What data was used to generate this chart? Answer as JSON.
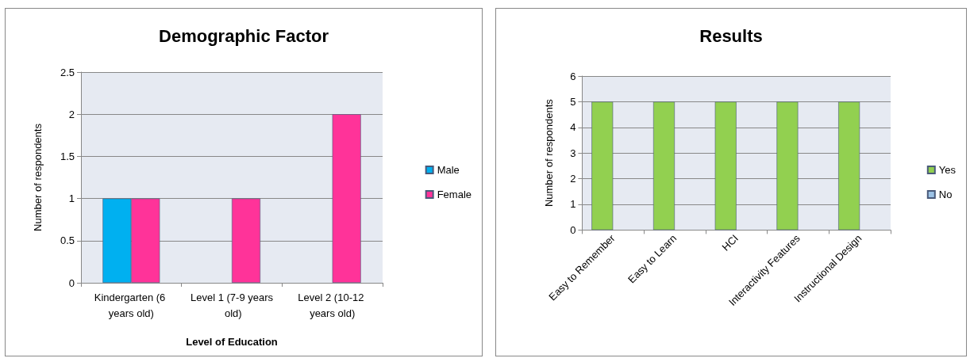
{
  "chart_data": [
    {
      "type": "bar",
      "title": "Demographic Factor",
      "xlabel": "Level of Education",
      "ylabel": "Number of respondents",
      "categories": [
        "Kindergarten (6 years old)",
        "Level 1 (7-9 years old)",
        "Level 2 (10-12 years old)"
      ],
      "series": [
        {
          "name": "Male",
          "color": "#00b0f0",
          "values": [
            1,
            null,
            null
          ]
        },
        {
          "name": "Female",
          "color": "#ff3399",
          "values": [
            1,
            1,
            2
          ]
        }
      ],
      "ylim": [
        0,
        2.5
      ],
      "yticks": [
        0,
        0.5,
        1,
        1.5,
        2,
        2.5
      ],
      "grid": "y",
      "legend": "right"
    },
    {
      "type": "bar",
      "title": "Results",
      "ylabel": "Number of respondents",
      "categories": [
        "Easy to Remember",
        "Easy to Learn",
        "HCI",
        "Interactivity Features",
        "Instructional Design"
      ],
      "series": [
        {
          "name": "Yes",
          "color": "#92d050",
          "values": [
            5,
            5,
            5,
            5,
            5
          ]
        },
        {
          "name": "No",
          "color": "#9dc3e6",
          "values": [
            null,
            null,
            null,
            null,
            null
          ]
        }
      ],
      "ylim": [
        0,
        6
      ],
      "yticks": [
        0,
        1,
        2,
        3,
        4,
        5,
        6
      ],
      "grid": "y",
      "legend": "right"
    }
  ]
}
